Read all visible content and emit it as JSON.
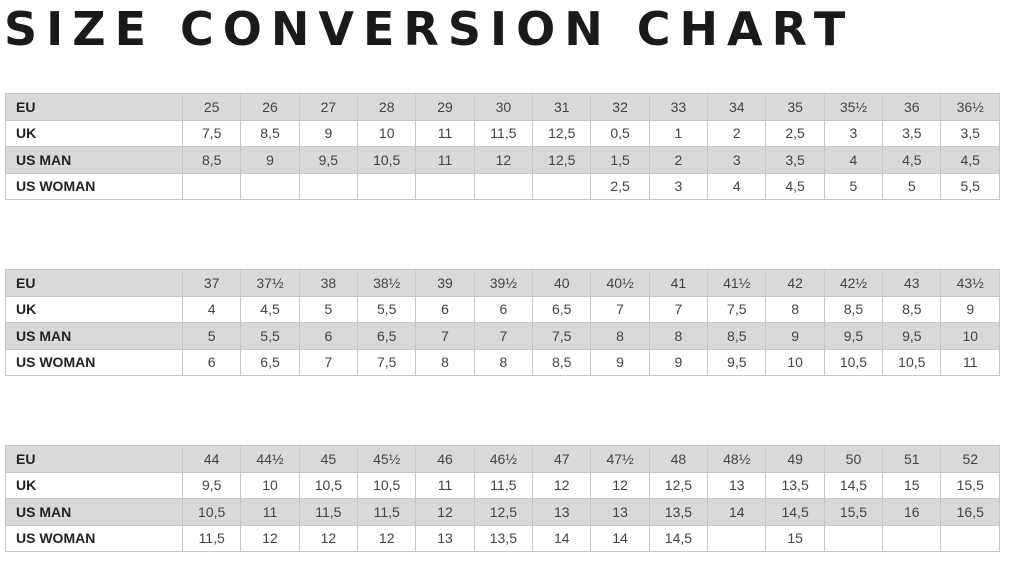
{
  "title": "SIZE CONVERSION CHART",
  "tables": [
    {
      "rows": [
        {
          "label": "EU",
          "values": [
            "25",
            "26",
            "27",
            "28",
            "29",
            "30",
            "31",
            "32",
            "33",
            "34",
            "35",
            "35½",
            "36",
            "36½"
          ]
        },
        {
          "label": "UK",
          "values": [
            "7,5",
            "8,5",
            "9",
            "10",
            "11",
            "11,5",
            "12,5",
            "0,5",
            "1",
            "2",
            "2,5",
            "3",
            "3,5",
            "3,5"
          ]
        },
        {
          "label": "US MAN",
          "values": [
            "8,5",
            "9",
            "9,5",
            "10,5",
            "11",
            "12",
            "12,5",
            "1,5",
            "2",
            "3",
            "3,5",
            "4",
            "4,5",
            "4,5"
          ]
        },
        {
          "label": "US WOMAN",
          "values": [
            "",
            "",
            "",
            "",
            "",
            "",
            "",
            "2,5",
            "3",
            "4",
            "4,5",
            "5",
            "5",
            "5,5"
          ]
        }
      ]
    },
    {
      "rows": [
        {
          "label": "EU",
          "values": [
            "37",
            "37½",
            "38",
            "38½",
            "39",
            "39½",
            "40",
            "40½",
            "41",
            "41½",
            "42",
            "42½",
            "43",
            "43½"
          ]
        },
        {
          "label": "UK",
          "values": [
            "4",
            "4,5",
            "5",
            "5,5",
            "6",
            "6",
            "6,5",
            "7",
            "7",
            "7,5",
            "8",
            "8,5",
            "8,5",
            "9"
          ]
        },
        {
          "label": "US MAN",
          "values": [
            "5",
            "5,5",
            "6",
            "6,5",
            "7",
            "7",
            "7,5",
            "8",
            "8",
            "8,5",
            "9",
            "9,5",
            "9,5",
            "10"
          ]
        },
        {
          "label": "US WOMAN",
          "values": [
            "6",
            "6,5",
            "7",
            "7,5",
            "8",
            "8",
            "8,5",
            "9",
            "9",
            "9,5",
            "10",
            "10,5",
            "10,5",
            "11"
          ]
        }
      ]
    },
    {
      "rows": [
        {
          "label": "EU",
          "values": [
            "44",
            "44½",
            "45",
            "45½",
            "46",
            "46½",
            "47",
            "47½",
            "48",
            "48½",
            "49",
            "50",
            "51",
            "52"
          ]
        },
        {
          "label": "UK",
          "values": [
            "9,5",
            "10",
            "10,5",
            "10,5",
            "11",
            "11,5",
            "12",
            "12",
            "12,5",
            "13",
            "13,5",
            "14,5",
            "15",
            "15,5"
          ]
        },
        {
          "label": "US MAN",
          "values": [
            "10,5",
            "11",
            "11,5",
            "11,5",
            "12",
            "12,5",
            "13",
            "13",
            "13,5",
            "14",
            "14,5",
            "15,5",
            "16",
            "16,5"
          ]
        },
        {
          "label": "US WOMAN",
          "values": [
            "11,5",
            "12",
            "12",
            "12",
            "13",
            "13,5",
            "14",
            "14",
            "14,5",
            "",
            "15",
            "",
            "",
            ""
          ]
        }
      ]
    }
  ]
}
